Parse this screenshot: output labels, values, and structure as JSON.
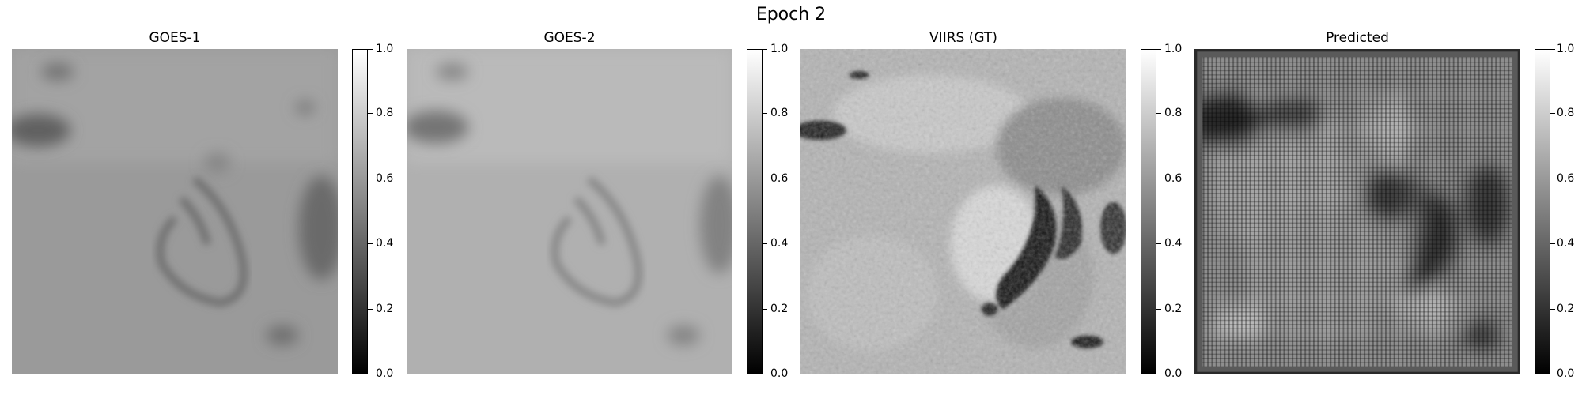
{
  "figure": {
    "title": "Epoch 2"
  },
  "panels": [
    {
      "id": "goes1",
      "title": "GOES-1",
      "icon": "goes1-satellite-image"
    },
    {
      "id": "goes2",
      "title": "GOES-2",
      "icon": "goes2-satellite-image"
    },
    {
      "id": "viirs",
      "title": "VIIRS (GT)",
      "icon": "viirs-ground-truth-image"
    },
    {
      "id": "pred",
      "title": "Predicted",
      "icon": "predicted-image"
    }
  ],
  "colorbar": {
    "colormap": "gray",
    "range": [
      0.0,
      1.0
    ],
    "ticks": [
      "0.0",
      "0.2",
      "0.4",
      "0.6",
      "0.8",
      "1.0"
    ],
    "low_color": "#000000",
    "high_color": "#ffffff"
  }
}
